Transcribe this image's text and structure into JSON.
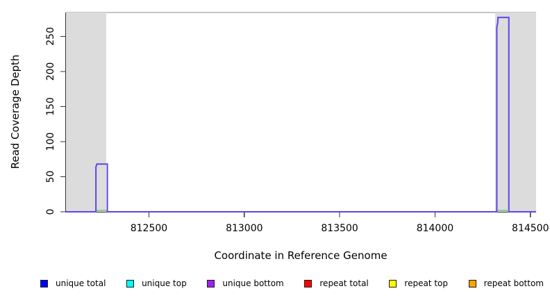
{
  "chart_data": {
    "type": "line",
    "title": "",
    "xlabel": "Coordinate in Reference Genome",
    "ylabel": "Read Coverage Depth",
    "xlim": [
      812065,
      814530
    ],
    "ylim": [
      0,
      284
    ],
    "xticks": [
      812500,
      813000,
      813500,
      814000,
      814500
    ],
    "yticks": [
      0,
      50,
      100,
      150,
      200,
      250
    ],
    "grid": false,
    "background": "#ffffff",
    "box_color": "#8c8c8c",
    "axis_color": "#333333",
    "shaded_regions": [
      {
        "name": "masked-region-left",
        "x0": 812065,
        "x1": 812277,
        "color": "#dcdcdc"
      },
      {
        "name": "masked-region-right",
        "x0": 814315,
        "x1": 814530,
        "color": "#dcdcdc"
      }
    ],
    "series": [
      {
        "name": "coverage-profile",
        "color": "#5c45e6",
        "width": 2,
        "points": [
          [
            812065,
            0
          ],
          [
            812222,
            0
          ],
          [
            812222,
            64
          ],
          [
            812227,
            68
          ],
          [
            812282,
            68
          ],
          [
            812282,
            0
          ],
          [
            814324,
            0
          ],
          [
            814324,
            263
          ],
          [
            814327,
            267
          ],
          [
            814329,
            270
          ],
          [
            814330,
            277
          ],
          [
            814387,
            277
          ],
          [
            814387,
            0
          ],
          [
            814530,
            0
          ]
        ]
      },
      {
        "name": "low-coverage-segment-left",
        "color": "#8fcc8f",
        "width": 2,
        "points": [
          [
            812226,
            2
          ],
          [
            812278,
            2
          ]
        ]
      },
      {
        "name": "low-coverage-segment-right",
        "color": "#8fcc8f",
        "width": 2,
        "points": [
          [
            814327,
            2
          ],
          [
            814385,
            2
          ]
        ]
      }
    ],
    "peaks": [
      {
        "x_start": 812222,
        "x_end": 812282,
        "depth": 68
      },
      {
        "x_start": 814324,
        "x_end": 814387,
        "depth": 277
      }
    ],
    "legend_position": "bottom",
    "legend": [
      {
        "label": "unique total",
        "color": "#0000ff"
      },
      {
        "label": "unique top",
        "color": "#00ffff"
      },
      {
        "label": "unique bottom",
        "color": "#a020f0"
      },
      {
        "label": "repeat total",
        "color": "#ff0000"
      },
      {
        "label": "repeat top",
        "color": "#ffff00"
      },
      {
        "label": "repeat bottom",
        "color": "#ffa500"
      }
    ]
  }
}
